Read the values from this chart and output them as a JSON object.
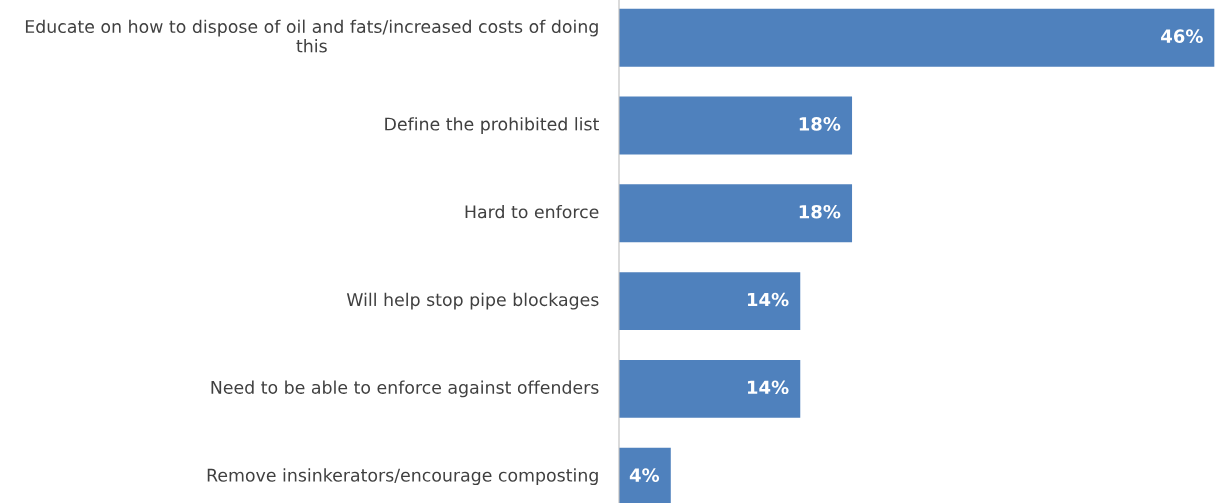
{
  "chart_data": {
    "type": "bar",
    "orientation": "horizontal",
    "categories": [
      "Educate on how to dispose of oil and fats/increased costs of doing this",
      "Define the prohibited list",
      "Hard to enforce",
      "Will help stop pipe blockages",
      "Need to be able to enforce against offenders",
      "Remove insinkerators/encourage composting"
    ],
    "values": [
      46,
      18,
      18,
      14,
      14,
      4
    ],
    "value_labels": [
      "46%",
      "18%",
      "18%",
      "14%",
      "14%",
      "4%"
    ],
    "color": "#4f81bd",
    "xlim": [
      0,
      46
    ]
  }
}
